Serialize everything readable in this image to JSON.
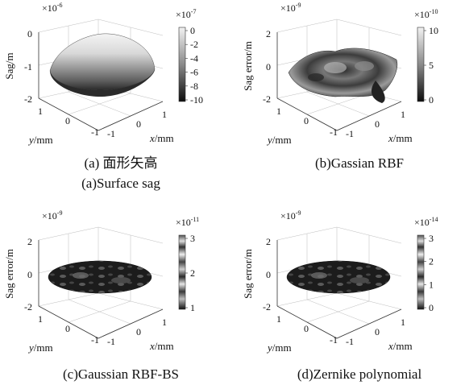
{
  "panels": [
    {
      "id": "a",
      "zlabel": "Sag/m",
      "z_multiplier": "×10",
      "z_exponent": "-6",
      "z_ticks": [
        "0",
        "-1",
        "-2"
      ],
      "xlabel_var": "x",
      "xlabel_unit": "/mm",
      "ylabel_var": "y",
      "ylabel_unit": "/mm",
      "x_ticks": [
        "-1",
        "0",
        "1"
      ],
      "y_ticks": [
        "1",
        "0",
        "-1"
      ],
      "colorbar_multiplier": "×10",
      "colorbar_exponent": "-7",
      "colorbar_ticks": [
        "0",
        "-2",
        "-4",
        "-6",
        "-8",
        "-10"
      ],
      "caption_lines": [
        "(a) 面形矢高",
        "(a)Surface sag"
      ]
    },
    {
      "id": "b",
      "zlabel": "Sag error/m",
      "z_multiplier": "×10",
      "z_exponent": "-9",
      "z_ticks": [
        "2",
        "0",
        "-2"
      ],
      "xlabel_var": "x",
      "xlabel_unit": "/mm",
      "ylabel_var": "y",
      "ylabel_unit": "/mm",
      "x_ticks": [
        "-1",
        "0",
        "1"
      ],
      "y_ticks": [
        "1",
        "0",
        "-1"
      ],
      "colorbar_multiplier": "×10",
      "colorbar_exponent": "-10",
      "colorbar_ticks": [
        "10",
        "5",
        "0"
      ],
      "caption_lines": [
        "(b)Gassian RBF"
      ]
    },
    {
      "id": "c",
      "zlabel": "Sag error/m",
      "z_multiplier": "×10",
      "z_exponent": "-9",
      "z_ticks": [
        "2",
        "0",
        "-2"
      ],
      "xlabel_var": "x",
      "xlabel_unit": "/mm",
      "ylabel_var": "y",
      "ylabel_unit": "/mm",
      "x_ticks": [
        "-1",
        "0",
        "1"
      ],
      "y_ticks": [
        "1",
        "0",
        "-1"
      ],
      "colorbar_multiplier": "×10",
      "colorbar_exponent": "-11",
      "colorbar_ticks": [
        "3",
        "2",
        "1"
      ],
      "caption_lines": [
        "(c)Gaussian RBF-BS"
      ]
    },
    {
      "id": "d",
      "zlabel": "Sag error/m",
      "z_multiplier": "×10",
      "z_exponent": "-9",
      "z_ticks": [
        "2",
        "0",
        "-2"
      ],
      "xlabel_var": "x",
      "xlabel_unit": "/mm",
      "ylabel_var": "y",
      "ylabel_unit": "/mm",
      "x_ticks": [
        "-1",
        "0",
        "1"
      ],
      "y_ticks": [
        "1",
        "0",
        "-1"
      ],
      "colorbar_multiplier": "×10",
      "colorbar_exponent": "-14",
      "colorbar_ticks": [
        "3",
        "2",
        "1",
        "0"
      ],
      "caption_lines": [
        "(d)Zernike polynomial"
      ]
    }
  ]
}
